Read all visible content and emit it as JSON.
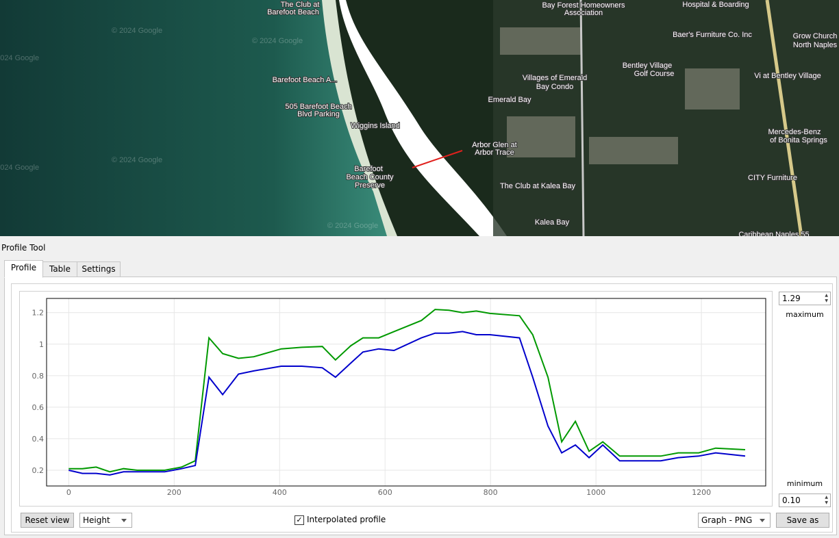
{
  "map": {
    "labels": [
      "The Club at",
      "Barefoot Beach",
      "Barefoot Beach A...",
      "505 Barefoot Beach",
      "Blvd Parking",
      "Wiggins Island",
      "Barefoot",
      "Beach County",
      "Preserve",
      "Arbor Glen at",
      "Arbor Trace",
      "Villages of Emerald",
      "Bay Condo",
      "Emerald Bay",
      "The Club at Kalea Bay",
      "Kalea Bay",
      "Bay Forest Homeowners",
      "Association",
      "Bentley Village",
      "Golf Course",
      "Vi at Bentley Village",
      "Mercedes-Benz",
      "of Bonita Springs",
      "CITY Furniture",
      "Baer's Furniture Co. Inc",
      "Grow Church",
      "North Naples",
      "Hospital & Boarding",
      "Caribbean Naples 55",
      "© 2024 Google"
    ]
  },
  "panel": {
    "title": "Profile Tool",
    "tabs": [
      "Profile",
      "Table",
      "Settings"
    ],
    "max_value": "1.29",
    "max_label": "maximum",
    "min_label": "minimum",
    "min_value": "0.10",
    "reset_button": "Reset view",
    "mode_combo": "Height",
    "interpolated_checkbox": "Interpolated profile",
    "export_combo": "Graph - PNG",
    "save_button": "Save as"
  },
  "chart_data": {
    "type": "line",
    "x": [
      0,
      26,
      52,
      78,
      104,
      130,
      182,
      214,
      240,
      266,
      292,
      322,
      351,
      403,
      442,
      481,
      506,
      535,
      558,
      588,
      617,
      669,
      695,
      721,
      747,
      773,
      799,
      855,
      880,
      909,
      935,
      961,
      987,
      1013,
      1045,
      1091,
      1123,
      1156,
      1195,
      1227,
      1283
    ],
    "series": [
      {
        "color": "#009900",
        "values": [
          0.21,
          0.21,
          0.22,
          0.19,
          0.21,
          0.2,
          0.2,
          0.22,
          0.26,
          1.04,
          0.94,
          0.91,
          0.92,
          0.97,
          0.98,
          0.985,
          0.9,
          0.99,
          1.04,
          1.04,
          1.08,
          1.15,
          1.22,
          1.215,
          1.2,
          1.21,
          1.195,
          1.18,
          1.06,
          0.79,
          0.38,
          0.51,
          0.32,
          0.38,
          0.29,
          0.29,
          0.29,
          0.31,
          0.31,
          0.34,
          0.33
        ]
      },
      {
        "color": "#0000cc",
        "values": [
          0.2,
          0.18,
          0.18,
          0.17,
          0.19,
          0.19,
          0.19,
          0.21,
          0.23,
          0.79,
          0.68,
          0.81,
          0.83,
          0.86,
          0.86,
          0.85,
          0.79,
          0.88,
          0.95,
          0.97,
          0.96,
          1.04,
          1.07,
          1.07,
          1.08,
          1.06,
          1.06,
          1.04,
          0.79,
          0.48,
          0.31,
          0.36,
          0.28,
          0.36,
          0.26,
          0.26,
          0.26,
          0.28,
          0.29,
          0.31,
          0.29
        ]
      }
    ],
    "xlim": [
      -42,
      1322
    ],
    "ylim": [
      0.1,
      1.29
    ],
    "xticks": [
      0,
      200,
      400,
      600,
      800,
      1000,
      1200
    ],
    "yticks": [
      0.2,
      0.4,
      0.6,
      0.8,
      1,
      1.2
    ],
    "grid": true
  }
}
